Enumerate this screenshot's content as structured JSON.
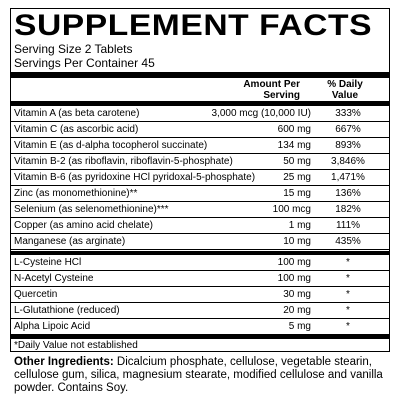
{
  "title": "SUPPLEMENT FACTS",
  "serving_size": "Serving Size 2 Tablets",
  "servings_per_container": "Servings Per Container 45",
  "header": {
    "amount": "Amount Per Serving",
    "daily_value": "% Daily Value"
  },
  "nutrients": [
    {
      "name": "Vitamin A (as beta carotene)",
      "amount": "3,000 mcg (10,000 IU)",
      "daily_value": "333%"
    },
    {
      "name": "Vitamin C (as ascorbic acid)",
      "amount": "600 mg",
      "daily_value": "667%"
    },
    {
      "name": "Vitamin E (as d-alpha tocopherol succinate)",
      "amount": "134 mg",
      "daily_value": "893%"
    },
    {
      "name": "Vitamin B-2 (as riboflavin, riboflavin-5-phosphate)",
      "amount": "50 mg",
      "daily_value": "3,846%"
    },
    {
      "name": "Vitamin B-6 (as pyridoxine HCl pyridoxal-5-phosphate)",
      "amount": "25 mg",
      "daily_value": "1,471%"
    },
    {
      "name": "Zinc (as monomethionine)**",
      "amount": "15 mg",
      "daily_value": "136%"
    },
    {
      "name": "Selenium (as selenomethionine)***",
      "amount": "100 mcg",
      "daily_value": "182%"
    },
    {
      "name": "Copper (as amino acid chelate)",
      "amount": "1 mg",
      "daily_value": "111%"
    },
    {
      "name": "Manganese (as arginate)",
      "amount": "10 mg",
      "daily_value": "435%"
    }
  ],
  "other_nutrients": [
    {
      "name": "L-Cysteine HCl",
      "amount": "100 mg",
      "daily_value": "*"
    },
    {
      "name": "N-Acetyl Cysteine",
      "amount": "100 mg",
      "daily_value": "*"
    },
    {
      "name": "Quercetin",
      "amount": "30 mg",
      "daily_value": "*"
    },
    {
      "name": "L-Glutathione (reduced)",
      "amount": "20 mg",
      "daily_value": "*"
    },
    {
      "name": "Alpha Lipoic Acid",
      "amount": "5 mg",
      "daily_value": "*"
    }
  ],
  "footnote": "*Daily Value not established",
  "other_ingredients": {
    "label": "Other Ingredients:",
    "text": "Dicalcium phosphate, cellulose, vegetable stearin, cellulose gum, silica, magnesium stearate, modified cellulose and vanilla powder. Contains Soy."
  }
}
